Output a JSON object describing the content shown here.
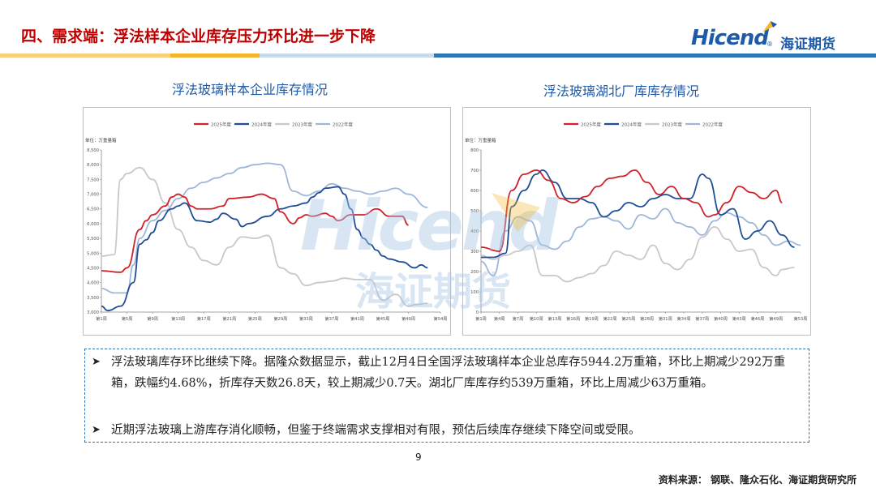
{
  "header": {
    "title": "四、需求端：浮法样本企业库存压力环比进一步下降",
    "logo_en": "Hicend",
    "logo_reg": "®",
    "logo_cn": "海证期货"
  },
  "colors": {
    "title_red": "#c00000",
    "brand_blue": "#1f5aa6",
    "band_yellow": "#f2b72e",
    "band_blue": "#2e75b6",
    "series_2025": "#d0202a",
    "series_2024": "#1f4e96",
    "series_2023": "#c8c8c8",
    "series_2022": "#9fb6d8"
  },
  "watermark": {
    "en": "Hicend",
    "cn": "海证期货"
  },
  "charts_titles": {
    "left": "浮法玻璃样本企业库存情况",
    "right": "浮法玻璃湖北厂库库存情况"
  },
  "chart_data": [
    {
      "type": "line",
      "unit_label": "单位：万重量箱",
      "legend": [
        "2025年度",
        "2024年度",
        "2023年度",
        "2022年度"
      ],
      "legend_position": "top",
      "x_tick_labels": [
        "第1周",
        "第5周",
        "第9周",
        "第13周",
        "第17周",
        "第21周",
        "第25周",
        "第29周",
        "第33周",
        "第37周",
        "第41周",
        "第45周",
        "第49周",
        "第54周"
      ],
      "x_range": [
        1,
        54
      ],
      "y_range": [
        3000,
        8500
      ],
      "y_ticks": [
        "3,000",
        "3,500",
        "4,000",
        "4,500",
        "5,000",
        "5,500",
        "6,000",
        "6,500",
        "7,000",
        "7,500",
        "8,000",
        "8,500"
      ],
      "series": [
        {
          "name": "2025年度",
          "x": [
            1,
            4,
            5,
            7,
            8,
            9,
            11,
            12,
            13,
            14,
            15,
            16,
            18,
            20,
            21,
            24,
            26,
            28,
            29,
            31,
            32,
            33,
            34,
            36,
            37,
            38,
            40,
            42,
            44,
            46,
            48,
            49
          ],
          "values": [
            4400,
            4350,
            4500,
            5800,
            6100,
            6300,
            6600,
            6900,
            7000,
            6900,
            6600,
            6500,
            6500,
            6600,
            6850,
            6900,
            7000,
            6850,
            6400,
            6000,
            6200,
            6300,
            6250,
            6350,
            6250,
            6100,
            6300,
            6300,
            6500,
            6250,
            6250,
            5950
          ]
        },
        {
          "name": "2024年度",
          "x": [
            1,
            2,
            4,
            6,
            7,
            8,
            9,
            10,
            12,
            13,
            14,
            16,
            18,
            19,
            20,
            22,
            23,
            24,
            27,
            29,
            31,
            33,
            34,
            35,
            36,
            38,
            39,
            40,
            41,
            42,
            43,
            44,
            45,
            46,
            48,
            50,
            51,
            52
          ],
          "values": [
            3200,
            3050,
            3200,
            4000,
            5300,
            5450,
            5700,
            6100,
            6500,
            6600,
            6700,
            6100,
            6050,
            6150,
            6350,
            6150,
            5900,
            6000,
            6250,
            6500,
            6600,
            6700,
            6900,
            7050,
            7200,
            7250,
            7000,
            6500,
            5800,
            5500,
            5300,
            5100,
            4900,
            4800,
            4700,
            4500,
            4600,
            4500
          ]
        },
        {
          "name": "2023年度",
          "x": [
            1,
            3,
            4,
            5,
            7,
            9,
            11,
            13,
            15,
            17,
            19,
            21,
            23,
            25,
            27,
            29,
            31,
            33,
            35,
            37,
            39,
            41,
            43,
            45,
            47,
            49,
            50,
            52
          ],
          "values": [
            4900,
            4950,
            7500,
            7700,
            7900,
            7500,
            6700,
            5800,
            5200,
            4750,
            4600,
            5200,
            5550,
            5500,
            5600,
            4500,
            4300,
            3900,
            4000,
            4050,
            4150,
            4100,
            4100,
            3400,
            3600,
            3200,
            3250,
            3300
          ]
        },
        {
          "name": "2022年度",
          "x": [
            1,
            3,
            5,
            6,
            7,
            9,
            11,
            13,
            15,
            17,
            19,
            21,
            23,
            25,
            27,
            29,
            31,
            33,
            35,
            37,
            39,
            41,
            43,
            45,
            47,
            49,
            52
          ],
          "values": [
            3800,
            3650,
            3650,
            4600,
            5500,
            6100,
            6450,
            6850,
            7200,
            7400,
            7550,
            7700,
            7900,
            8000,
            8050,
            8000,
            7100,
            6950,
            7100,
            7350,
            7200,
            7100,
            7000,
            7100,
            7200,
            7000,
            6550
          ]
        }
      ]
    },
    {
      "type": "line",
      "unit_label": "单位：万重量箱",
      "legend": [
        "2025年度",
        "2024年度",
        "2023年度",
        "2022年度"
      ],
      "legend_position": "top",
      "x_tick_labels": [
        "第1周",
        "第4周",
        "第7周",
        "第10周",
        "第13周",
        "第16周",
        "第19周",
        "第22周",
        "第25周",
        "第28周",
        "第31周",
        "第34周",
        "第37周",
        "第40周",
        "第43周",
        "第46周",
        "第49周",
        "第53周"
      ],
      "x_range": [
        1,
        53
      ],
      "y_range": [
        0,
        800
      ],
      "y_ticks": [
        "0",
        "100",
        "200",
        "300",
        "400",
        "500",
        "600",
        "700",
        "800"
      ],
      "series": [
        {
          "name": "2025年度",
          "x": [
            1,
            4,
            6,
            8,
            10,
            12,
            14,
            16,
            18,
            20,
            22,
            24,
            26,
            28,
            30,
            32,
            34,
            36,
            38,
            39,
            41,
            43,
            45,
            47,
            49,
            50
          ],
          "values": [
            320,
            300,
            600,
            680,
            700,
            650,
            560,
            540,
            570,
            620,
            660,
            670,
            700,
            640,
            580,
            620,
            560,
            540,
            470,
            480,
            540,
            620,
            590,
            560,
            600,
            540
          ]
        },
        {
          "name": "2024年度",
          "x": [
            1,
            3,
            5,
            6,
            8,
            10,
            11,
            13,
            15,
            17,
            19,
            21,
            23,
            25,
            27,
            29,
            31,
            33,
            35,
            37,
            38,
            40,
            42,
            44,
            46,
            48,
            50,
            52
          ],
          "values": [
            270,
            270,
            290,
            520,
            600,
            680,
            700,
            640,
            560,
            560,
            540,
            470,
            500,
            540,
            520,
            560,
            580,
            560,
            560,
            680,
            660,
            480,
            510,
            360,
            400,
            450,
            380,
            320
          ]
        },
        {
          "name": "2023年度",
          "x": [
            1,
            3,
            5,
            7,
            9,
            11,
            13,
            15,
            17,
            19,
            21,
            23,
            25,
            27,
            29,
            31,
            33,
            35,
            37,
            39,
            41,
            43,
            45,
            47,
            49,
            50,
            52
          ],
          "values": [
            280,
            260,
            280,
            300,
            330,
            180,
            180,
            150,
            170,
            190,
            230,
            300,
            280,
            260,
            330,
            240,
            210,
            260,
            370,
            420,
            360,
            300,
            310,
            220,
            180,
            210,
            220
          ]
        },
        {
          "name": "2022年度",
          "x": [
            1,
            3,
            5,
            7,
            9,
            11,
            13,
            15,
            17,
            19,
            21,
            23,
            25,
            27,
            29,
            31,
            33,
            35,
            37,
            39,
            41,
            43,
            45,
            47,
            49,
            51,
            53
          ],
          "values": [
            250,
            180,
            400,
            470,
            450,
            330,
            310,
            350,
            420,
            460,
            470,
            450,
            410,
            480,
            460,
            510,
            440,
            420,
            380,
            450,
            490,
            470,
            440,
            380,
            330,
            350,
            330
          ]
        }
      ]
    }
  ],
  "commentary": {
    "bullet1": "浮法玻璃库存环比继续下降。据隆众数据显示，截止12月4日全国浮法玻璃样本企业总库存5944.2万重箱，环比上期减少292万重箱，跌幅约4.68%，折库存天数26.8天，较上期减少0.7天。湖北厂库库存约539万重箱，环比上周减少63万重箱。",
    "bullet2": "近期浮法玻璃上游库存消化顺畅，但鉴于终端需求支撑相对有限，预估后续库存继续下降空间或受限。"
  },
  "footer": {
    "page": "9",
    "source": "资料来源：  钢联、隆众石化、海证期货研究所"
  }
}
